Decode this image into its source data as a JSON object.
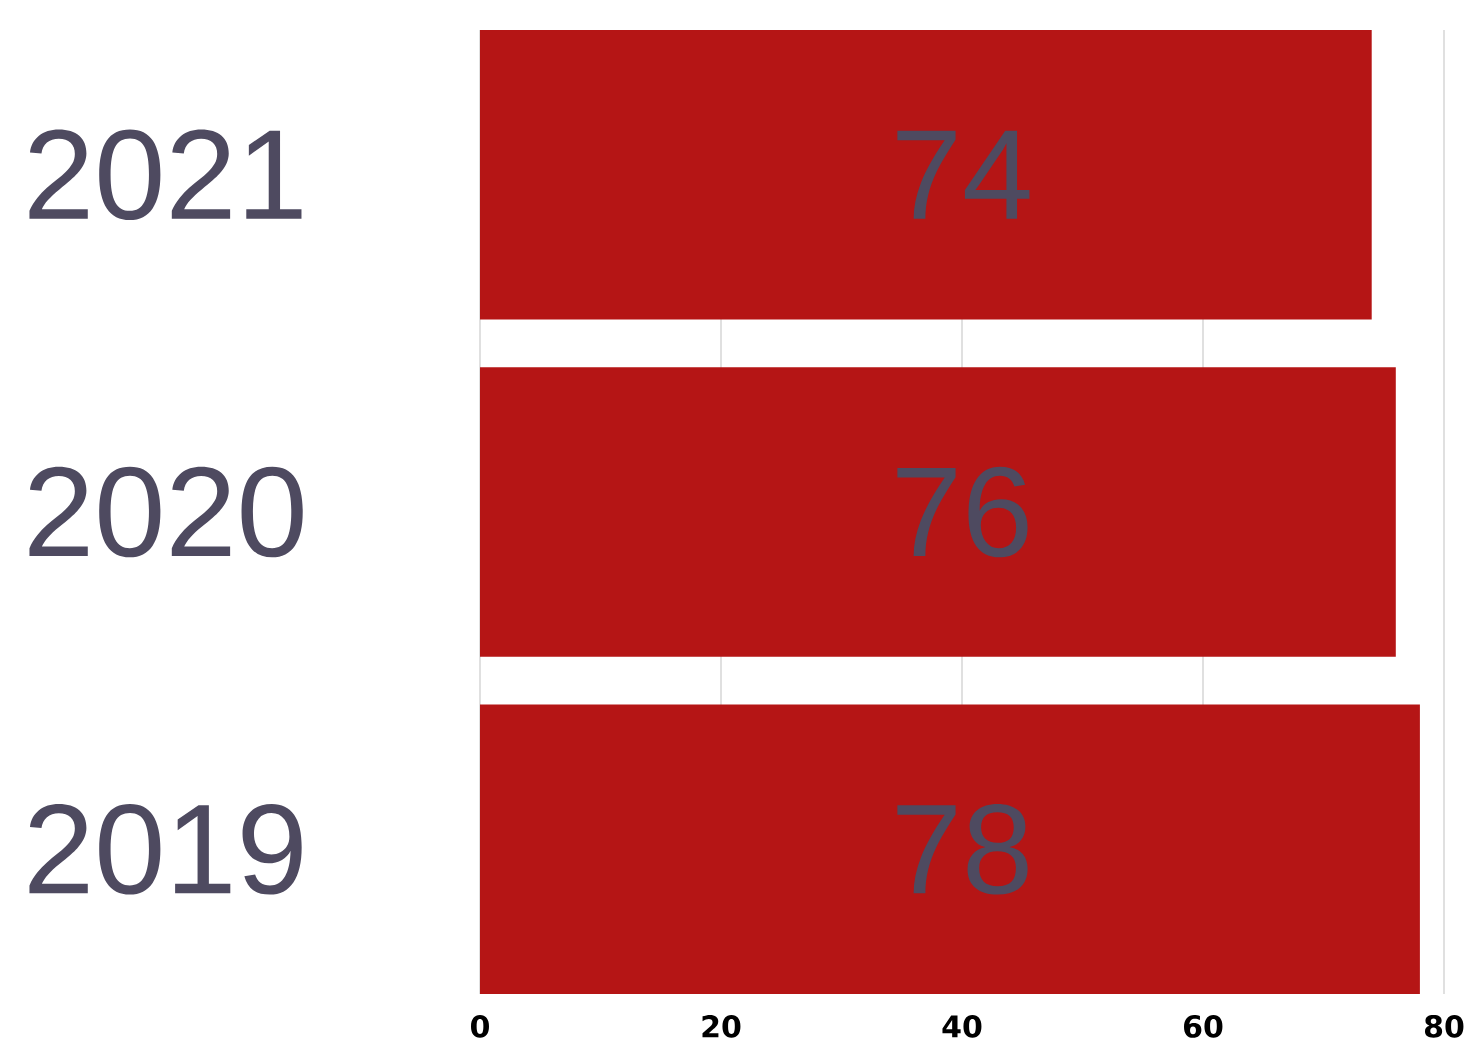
{
  "chart_data": {
    "type": "bar",
    "orientation": "horizontal",
    "categories": [
      "2021",
      "2020",
      "2019"
    ],
    "values": [
      74,
      76,
      78
    ],
    "color": "#b51515",
    "xlim": [
      0,
      80
    ],
    "xticks": [
      0,
      20,
      40,
      60,
      80
    ],
    "grid": "x",
    "data_labels": true
  }
}
